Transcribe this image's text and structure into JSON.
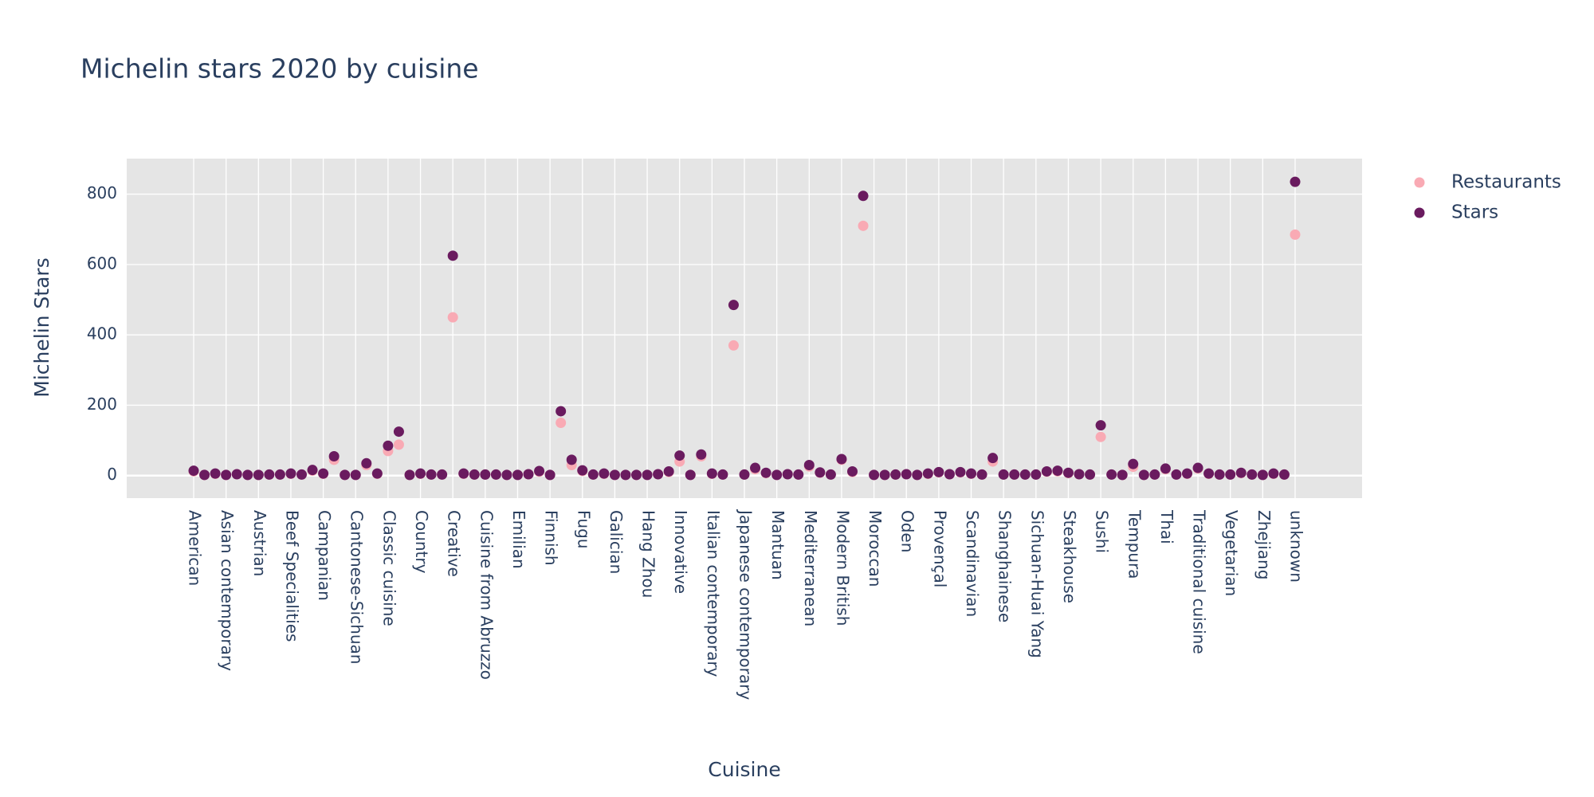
{
  "chart_data": {
    "type": "scatter",
    "title": "Michelin stars 2020 by cuisine",
    "x_label": "Cuisine",
    "y_label": "Michelin Stars",
    "categories": [
      "American",
      null,
      null,
      "Asian contemporary",
      null,
      null,
      "Austrian",
      null,
      null,
      "Beef Specialities",
      null,
      null,
      "Campanian",
      null,
      null,
      "Cantonese-Sichuan",
      null,
      null,
      "Classic cuisine",
      null,
      null,
      "Country",
      null,
      null,
      "Creative",
      null,
      null,
      "Cuisine from Abruzzo",
      null,
      null,
      "Emilian",
      null,
      null,
      "Finnish",
      null,
      null,
      "Fugu",
      null,
      null,
      "Galician",
      null,
      null,
      "Hang Zhou",
      null,
      null,
      "Innovative",
      null,
      null,
      "Italian contemporary",
      null,
      null,
      "Japanese contemporary",
      null,
      null,
      "Mantuan",
      null,
      null,
      "Mediterranean",
      null,
      null,
      "Modern British",
      null,
      null,
      "Moroccan",
      null,
      null,
      "Oden",
      null,
      null,
      "Provençal",
      null,
      null,
      "Scandinavian",
      null,
      null,
      "Shanghainese",
      null,
      null,
      "Sichuan-Huai Yang",
      null,
      null,
      "Steakhouse",
      null,
      null,
      "Sushi",
      null,
      null,
      "Tempura",
      null,
      null,
      "Thai",
      null,
      null,
      "Traditional cuisine",
      null,
      null,
      "Vegetarian",
      null,
      null,
      "Zhejiang",
      null,
      null,
      "unknown"
    ],
    "series": [
      {
        "name": "Restaurants",
        "color": "#f9aab4",
        "values": [
          12,
          2,
          5,
          2,
          4,
          2,
          2,
          3,
          3,
          5,
          3,
          14,
          5,
          45,
          2,
          2,
          30,
          5,
          70,
          88,
          2,
          5,
          3,
          3,
          450,
          5,
          3,
          3,
          3,
          2,
          2,
          4,
          11,
          2,
          150,
          30,
          13,
          3,
          5,
          2,
          2,
          2,
          2,
          4,
          10,
          40,
          2,
          55,
          5,
          3,
          370,
          3,
          18,
          7,
          2,
          4,
          3,
          26,
          8,
          3,
          45,
          10,
          710,
          2,
          2,
          3,
          4,
          2,
          5,
          9,
          4,
          9,
          5,
          3,
          40,
          3,
          3,
          3,
          3,
          11,
          12,
          7,
          4,
          3,
          110,
          3,
          2,
          25,
          2,
          3,
          18,
          3,
          5,
          20,
          5,
          3,
          3,
          7,
          3,
          2,
          5,
          3,
          685
        ]
      },
      {
        "name": "Stars",
        "color": "#6a1b5f",
        "values": [
          14,
          2,
          6,
          2,
          4,
          2,
          2,
          3,
          3,
          6,
          3,
          16,
          6,
          55,
          2,
          2,
          35,
          6,
          85,
          125,
          2,
          6,
          3,
          3,
          625,
          6,
          3,
          3,
          3,
          2,
          2,
          4,
          13,
          2,
          183,
          45,
          15,
          3,
          6,
          2,
          2,
          2,
          2,
          4,
          12,
          57,
          2,
          60,
          6,
          3,
          485,
          3,
          22,
          8,
          2,
          4,
          3,
          30,
          9,
          3,
          47,
          12,
          795,
          2,
          2,
          3,
          4,
          2,
          6,
          10,
          4,
          10,
          6,
          3,
          50,
          3,
          3,
          3,
          3,
          12,
          14,
          8,
          4,
          3,
          143,
          3,
          2,
          33,
          2,
          3,
          20,
          3,
          6,
          22,
          6,
          3,
          3,
          8,
          3,
          2,
          6,
          3,
          835
        ]
      }
    ],
    "ylim": [
      -64,
      901
    ],
    "yticks": [
      0,
      200,
      400,
      600,
      800
    ],
    "grid": true,
    "legend": "right"
  }
}
